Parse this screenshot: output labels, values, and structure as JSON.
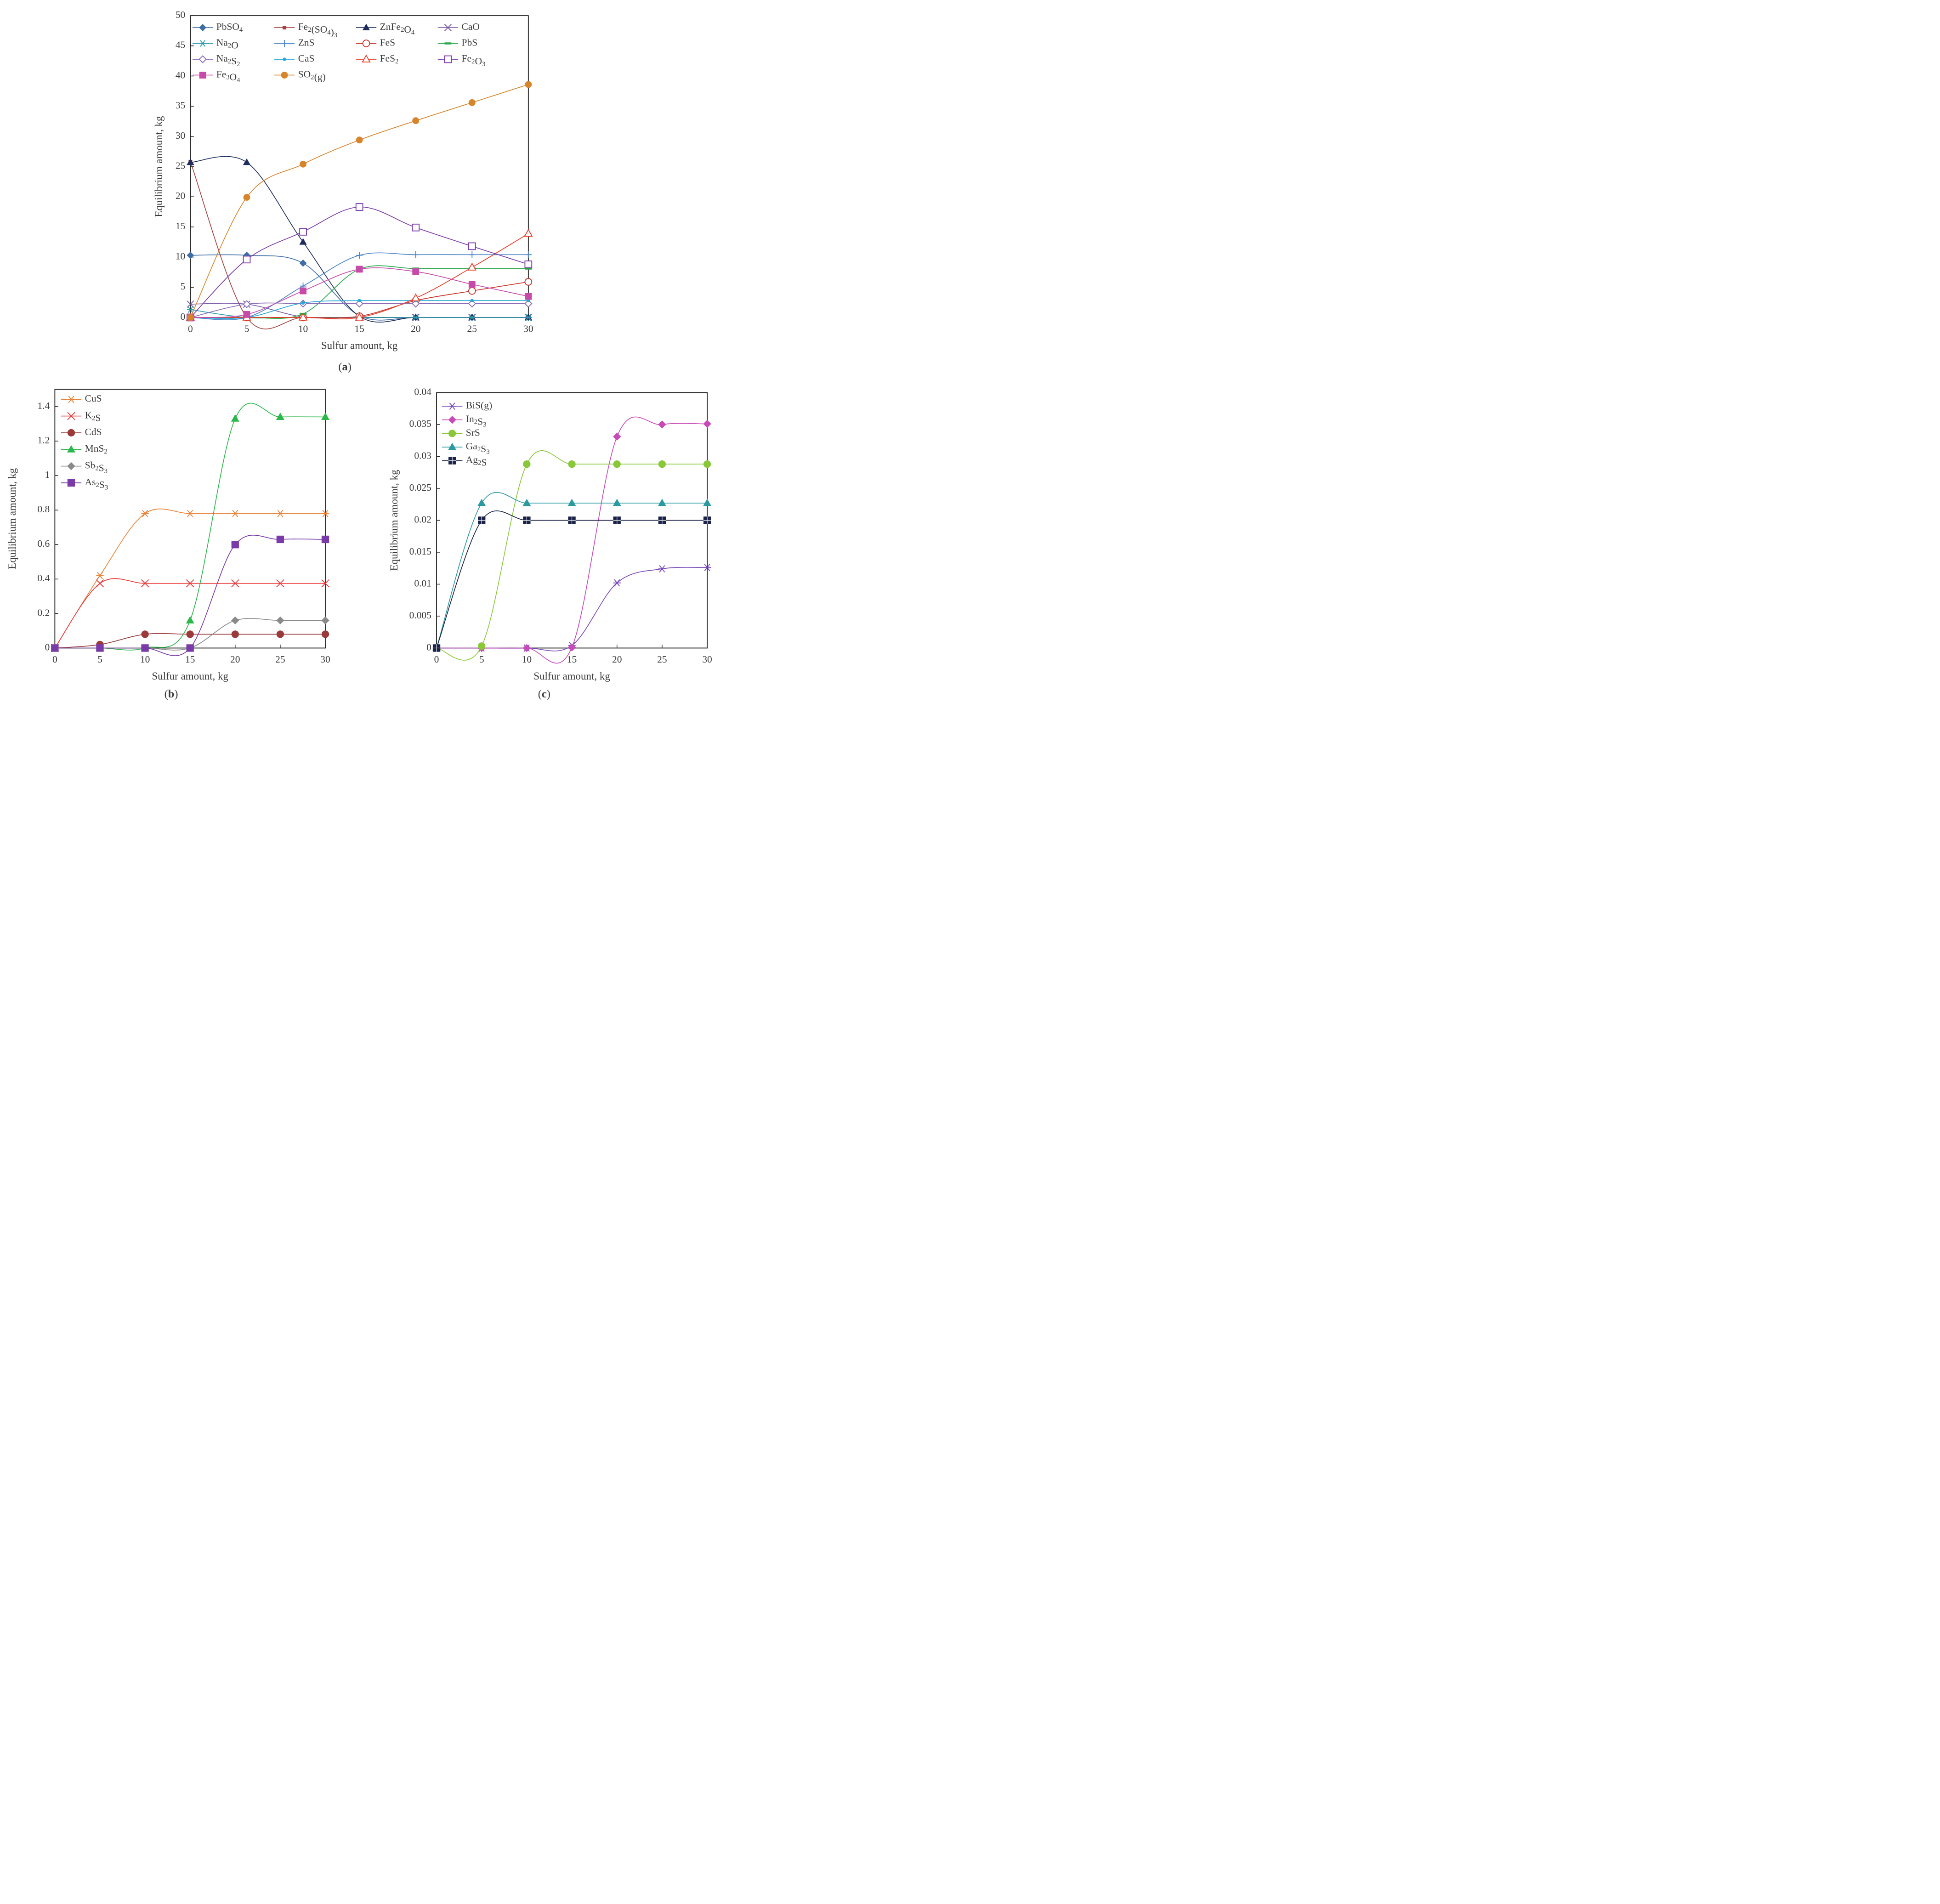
{
  "chart_data": [
    {
      "id": "a",
      "type": "line",
      "panel_label": "a",
      "title": "",
      "xlabel": "Sulfur amount, kg",
      "ylabel": "Equilibrium amount, kg",
      "xlim": [
        0,
        30
      ],
      "ylim": [
        0,
        50
      ],
      "x": [
        0,
        5,
        10,
        15,
        20,
        25,
        30
      ],
      "xticks": [
        "0",
        "5",
        "10",
        "15",
        "20",
        "25",
        "30"
      ],
      "yticks": [
        "0",
        "5",
        "10",
        "15",
        "20",
        "25",
        "30",
        "35",
        "40",
        "45",
        "50"
      ],
      "legend_position": "top",
      "series": [
        {
          "name": "PbSO4",
          "label": "PbSO",
          "sub": [
            "4"
          ],
          "color": "#3f6ea6",
          "marker": "diamond",
          "values": [
            10.3,
            10.3,
            9.0,
            0.3,
            0.0,
            0.0,
            0.0
          ]
        },
        {
          "name": "Fe2(SO4)3",
          "label": "Fe",
          "sub": [
            "2"
          ],
          "suffix": "(SO",
          "sub2": [
            "4"
          ],
          "suffix2": ")",
          "sub3": [
            "3"
          ],
          "color": "#a34040",
          "marker": "smallsquare",
          "values": [
            25.8,
            0.0,
            0.0,
            0.0,
            0.0,
            0.0,
            0.0
          ]
        },
        {
          "name": "ZnFe2O4",
          "label": "ZnFe",
          "sub": [
            "2"
          ],
          "suffix": "O",
          "sub2": [
            "4"
          ],
          "color": "#1f2d5e",
          "marker": "triangle",
          "values": [
            25.7,
            25.7,
            12.5,
            0.2,
            0.0,
            0.0,
            0.0
          ]
        },
        {
          "name": "CaO",
          "label": "CaO",
          "color": "#7a5aa8",
          "marker": "x",
          "values": [
            2.2,
            2.2,
            0.1,
            0.0,
            0.0,
            0.0,
            0.0
          ]
        },
        {
          "name": "Na2O",
          "label": "Na",
          "sub": [
            "2"
          ],
          "suffix": "O",
          "color": "#2a9aa8",
          "marker": "star",
          "values": [
            1.3,
            0.0,
            0.0,
            0.0,
            0.0,
            0.0,
            0.0
          ]
        },
        {
          "name": "ZnS",
          "label": "ZnS",
          "color": "#4c86c8",
          "marker": "plus",
          "values": [
            0.0,
            0.0,
            5.2,
            10.3,
            10.4,
            10.4,
            10.4
          ]
        },
        {
          "name": "FeS",
          "label": "FeS",
          "color": "#c8342a",
          "marker": "circle-open",
          "values": [
            0.0,
            0.0,
            0.0,
            0.2,
            2.8,
            4.4,
            5.9
          ]
        },
        {
          "name": "PbS",
          "label": "PbS",
          "color": "#2aa84a",
          "marker": "dash",
          "values": [
            0.0,
            0.0,
            0.6,
            8.0,
            8.1,
            8.1,
            8.1
          ]
        },
        {
          "name": "Na2S2",
          "label": "Na",
          "sub": [
            "2"
          ],
          "suffix": "S",
          "sub2": [
            "2"
          ],
          "color": "#8a6ab8",
          "marker": "diamond-open",
          "values": [
            0.0,
            2.2,
            2.3,
            2.3,
            2.3,
            2.3,
            2.3
          ]
        },
        {
          "name": "CaS",
          "label": "CaS",
          "color": "#2aa8d8",
          "marker": "dot",
          "values": [
            0.0,
            0.0,
            2.4,
            2.8,
            2.8,
            2.8,
            2.8
          ]
        },
        {
          "name": "FeS2",
          "label": "FeS",
          "sub": [
            "2"
          ],
          "color": "#e8402a",
          "marker": "triangle-open",
          "values": [
            0.0,
            0.0,
            0.0,
            0.0,
            3.2,
            8.3,
            13.9
          ]
        },
        {
          "name": "Fe2O3",
          "label": "Fe",
          "sub": [
            "2"
          ],
          "suffix": "O",
          "sub2": [
            "3"
          ],
          "color": "#7a3aa8",
          "marker": "square-open",
          "values": [
            0.0,
            9.6,
            14.2,
            18.3,
            14.9,
            11.8,
            8.8
          ]
        },
        {
          "name": "Fe3O4",
          "label": "Fe",
          "sub": [
            "3"
          ],
          "suffix": "O",
          "sub2": [
            "4"
          ],
          "color": "#c84aa8",
          "marker": "square",
          "values": [
            0.0,
            0.5,
            4.4,
            8.0,
            7.6,
            5.5,
            3.5
          ]
        },
        {
          "name": "SO2(g)",
          "label": "SO",
          "sub": [
            "2"
          ],
          "suffix": "(g)",
          "color": "#d8842a",
          "marker": "circle",
          "values": [
            0.0,
            19.9,
            25.4,
            29.4,
            32.6,
            35.6,
            38.6
          ]
        }
      ]
    },
    {
      "id": "b",
      "type": "line",
      "panel_label": "b",
      "title": "",
      "xlabel": "Sulfur amount, kg",
      "ylabel": "Equilibrium amount, kg",
      "xlim": [
        0,
        30
      ],
      "ylim": [
        0,
        1.5
      ],
      "x": [
        0,
        5,
        10,
        15,
        20,
        25,
        30
      ],
      "xticks": [
        "0",
        "5",
        "10",
        "15",
        "20",
        "25",
        "30"
      ],
      "yticks": [
        "0",
        "0.2",
        "0.4",
        "0.6",
        "0.8",
        "1",
        "1.2",
        "1.4"
      ],
      "ytick_values": [
        0,
        0.2,
        0.4,
        0.6,
        0.8,
        1.0,
        1.2,
        1.4
      ],
      "legend_position": "top-left",
      "series": [
        {
          "name": "CuS",
          "label": "CuS",
          "color": "#e8843a",
          "marker": "star",
          "values": [
            0.0,
            0.42,
            0.78,
            0.78,
            0.78,
            0.78,
            0.78
          ]
        },
        {
          "name": "K2S",
          "label": "K",
          "sub": [
            "2"
          ],
          "suffix": "S",
          "color": "#e83a3a",
          "marker": "x",
          "values": [
            0.0,
            0.375,
            0.375,
            0.375,
            0.375,
            0.375,
            0.375
          ]
        },
        {
          "name": "CdS",
          "label": "CdS",
          "color": "#9a3a3a",
          "marker": "circle",
          "values": [
            0.0,
            0.02,
            0.08,
            0.08,
            0.08,
            0.08,
            0.08
          ]
        },
        {
          "name": "MnS2",
          "label": "MnS",
          "sub": [
            "2"
          ],
          "color": "#2ab84a",
          "marker": "triangle",
          "values": [
            0.0,
            0.0,
            0.0,
            0.16,
            1.33,
            1.34,
            1.34
          ]
        },
        {
          "name": "Sb2S3",
          "label": "Sb",
          "sub": [
            "2"
          ],
          "suffix": "S",
          "sub2": [
            "3"
          ],
          "color": "#8a8a8a",
          "marker": "diamond",
          "values": [
            0.0,
            0.0,
            0.0,
            0.0,
            0.16,
            0.16,
            0.16
          ]
        },
        {
          "name": "As2S3",
          "label": "As",
          "sub": [
            "2"
          ],
          "suffix": "S",
          "sub2": [
            "3"
          ],
          "color": "#7a3aa8",
          "marker": "square",
          "values": [
            0.0,
            0.0,
            0.0,
            0.0,
            0.6,
            0.63,
            0.63
          ]
        }
      ]
    },
    {
      "id": "c",
      "type": "line",
      "panel_label": "c",
      "title": "",
      "xlabel": "Sulfur amount, kg",
      "ylabel": "Equilibrium amount, kg",
      "xlim": [
        0,
        30
      ],
      "ylim": [
        0,
        0.04
      ],
      "x": [
        0,
        5,
        10,
        15,
        20,
        25,
        30
      ],
      "xticks": [
        "0",
        "5",
        "10",
        "15",
        "20",
        "25",
        "30"
      ],
      "yticks": [
        "0",
        "0.005",
        "0.01",
        "0.015",
        "0.02",
        "0.025",
        "0.03",
        "0.035",
        "0.04"
      ],
      "ytick_values": [
        0,
        0.005,
        0.01,
        0.015,
        0.02,
        0.025,
        0.03,
        0.035,
        0.04
      ],
      "legend_position": "top-left",
      "series": [
        {
          "name": "BiS(g)",
          "label": "BiS(g)",
          "color": "#7a4ab8",
          "marker": "star",
          "values": [
            0.0,
            0.0,
            0.0,
            0.0004,
            0.0102,
            0.0124,
            0.0126
          ]
        },
        {
          "name": "In2S3",
          "label": "In",
          "sub": [
            "2"
          ],
          "suffix": "S",
          "sub2": [
            "3"
          ],
          "color": "#c84ab8",
          "marker": "diamond",
          "values": [
            0.0,
            0.0,
            0.0,
            0.0001,
            0.0331,
            0.035,
            0.0351
          ]
        },
        {
          "name": "SrS",
          "label": "SrS",
          "color": "#8ac83a",
          "marker": "circle",
          "values": [
            0.0,
            0.0003,
            0.0288,
            0.0288,
            0.0288,
            0.0288,
            0.0288
          ]
        },
        {
          "name": "Ga2S3",
          "label": "Ga",
          "sub": [
            "2"
          ],
          "suffix": "S",
          "sub2": [
            "3"
          ],
          "color": "#2a9aa0",
          "marker": "triangle",
          "values": [
            0.0,
            0.0227,
            0.0227,
            0.0227,
            0.0227,
            0.0227,
            0.0227
          ]
        },
        {
          "name": "Ag2S",
          "label": "Ag",
          "sub": [
            "2"
          ],
          "suffix": "S",
          "color": "#1a2248",
          "marker": "square-cross",
          "values": [
            0.0,
            0.02,
            0.02,
            0.02,
            0.02,
            0.02,
            0.02
          ]
        }
      ]
    }
  ]
}
